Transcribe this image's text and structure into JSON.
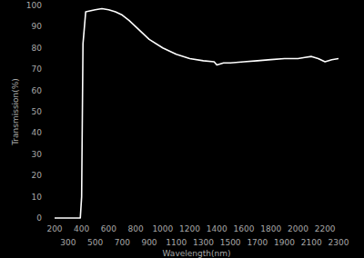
{
  "chart_data": {
    "type": "line",
    "x_label": "Wavelength(nm)",
    "y_label": "Transmission(%)",
    "x": [
      200,
      390,
      400,
      410,
      430,
      500,
      550,
      600,
      650,
      700,
      750,
      800,
      850,
      900,
      1000,
      1100,
      1200,
      1300,
      1380,
      1400,
      1450,
      1500,
      1600,
      1700,
      1800,
      1900,
      2000,
      2050,
      2100,
      2150,
      2200,
      2250,
      2300
    ],
    "values": [
      0,
      0,
      10,
      82,
      97,
      98,
      98.5,
      98,
      97,
      95.5,
      93,
      90,
      87,
      84,
      80,
      77,
      75,
      74,
      73.5,
      72,
      73,
      73,
      73.5,
      74,
      74.5,
      75,
      75,
      75.5,
      76,
      75,
      73.5,
      74.5,
      75
    ],
    "color": "#ffffff",
    "xlim": [
      200,
      2300
    ],
    "xticks": [
      200,
      300,
      400,
      500,
      600,
      700,
      800,
      900,
      1000,
      1100,
      1200,
      1300,
      1400,
      1500,
      1600,
      1700,
      1800,
      1900,
      2000,
      2100,
      2200,
      2300
    ],
    "ylim": [
      0,
      100
    ],
    "yticks": [
      0,
      10,
      20,
      30,
      40,
      50,
      60,
      70,
      80,
      90,
      100
    ],
    "grid": false
  }
}
